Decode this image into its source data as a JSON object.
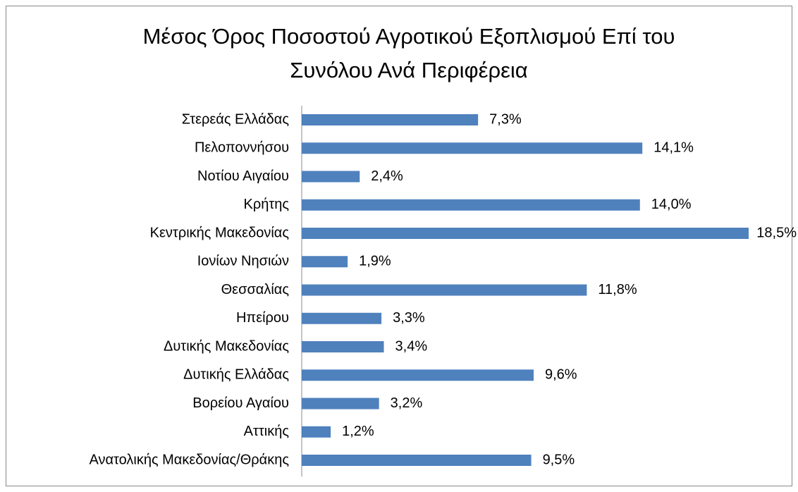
{
  "chart_data": {
    "type": "bar",
    "orientation": "horizontal",
    "title": "Μέσος Όρος Ποσοστού Αγροτικού Εξοπλισμού Επί του Συνόλου Ανά Περιφέρεια",
    "categories": [
      "Στερεάς Ελλάδας",
      "Πελοποννήσου",
      "Νοτίου Αιγαίου",
      "Κρήτης",
      "Κεντρικής Μακεδονίας",
      "Ιονίων Νησιών",
      "Θεσσαλίας",
      "Ηπείρου",
      "Δυτικής Μακεδονίας",
      "Δυτικής Ελλάδας",
      "Βορείου Αγαίου",
      "Αττικής",
      "Ανατολικής Μακεδονίας/Θράκης"
    ],
    "values": [
      7.3,
      14.1,
      2.4,
      14.0,
      18.5,
      1.9,
      11.8,
      3.3,
      3.4,
      9.6,
      3.2,
      1.2,
      9.5
    ],
    "value_labels": [
      "7,3%",
      "14,1%",
      "2,4%",
      "14,0%",
      "18,5%",
      "1,9%",
      "11,8%",
      "3,3%",
      "3,4%",
      "9,6%",
      "3,2%",
      "1,2%",
      "9,5%"
    ],
    "color": "#4f81bd"
  }
}
